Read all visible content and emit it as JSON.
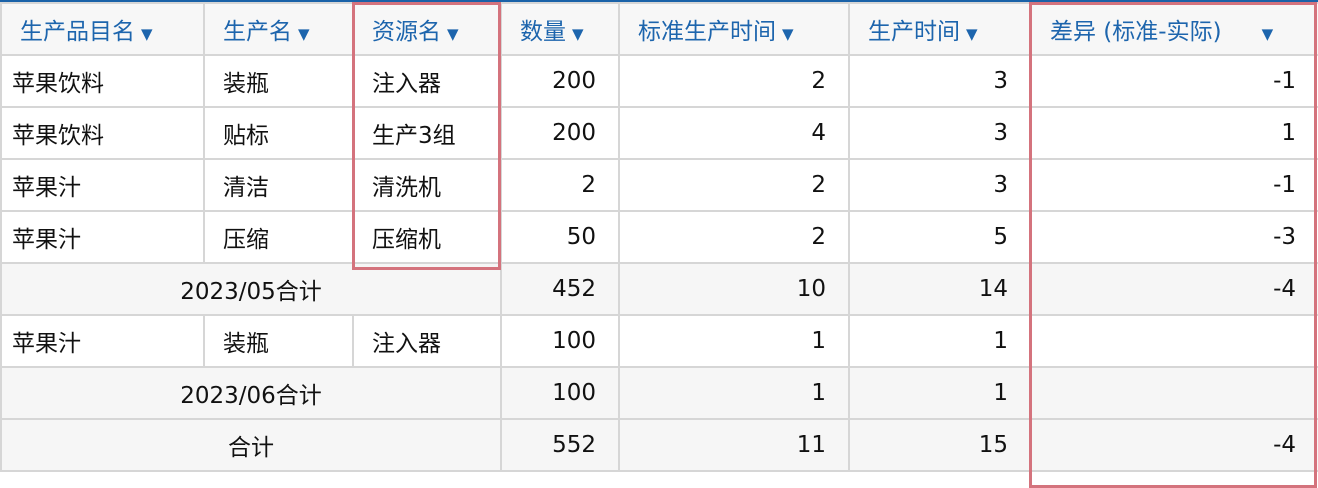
{
  "columns": [
    "生产品目名",
    "生产名",
    "资源名",
    "数量",
    "标准生产时间",
    "生产时间",
    "差异 (标准-实际)"
  ],
  "sort_icon": "triangle-down",
  "rows": [
    {
      "item": "苹果饮料",
      "process": "装瓶",
      "resource": "注入器",
      "qty": "200",
      "std": "2",
      "actual": "3",
      "diff": "-1"
    },
    {
      "item": "苹果饮料",
      "process": "贴标",
      "resource": "生产3组",
      "qty": "200",
      "std": "4",
      "actual": "3",
      "diff": "1"
    },
    {
      "item": "苹果汁",
      "process": "清洁",
      "resource": "清洗机",
      "qty": "2",
      "std": "2",
      "actual": "3",
      "diff": "-1"
    },
    {
      "item": "苹果汁",
      "process": "压缩",
      "resource": "压缩机",
      "qty": "50",
      "std": "2",
      "actual": "5",
      "diff": "-3"
    }
  ],
  "subtotal_0505": {
    "label": "2023/05合计",
    "qty": "452",
    "std": "10",
    "actual": "14",
    "diff": "-4"
  },
  "row_0606": {
    "item": "苹果汁",
    "process": "装瓶",
    "resource": "注入器",
    "qty": "100",
    "std": "1",
    "actual": "1",
    "diff": ""
  },
  "subtotal_0606": {
    "label": "2023/06合计",
    "qty": "100",
    "std": "1",
    "actual": "1",
    "diff": ""
  },
  "total": {
    "label": "合计",
    "qty": "552",
    "std": "11",
    "actual": "15",
    "diff": "-4"
  },
  "colors": {
    "header_text": "#1d65ad",
    "highlight": "#d4737d",
    "top_border": "#1a62a8"
  }
}
